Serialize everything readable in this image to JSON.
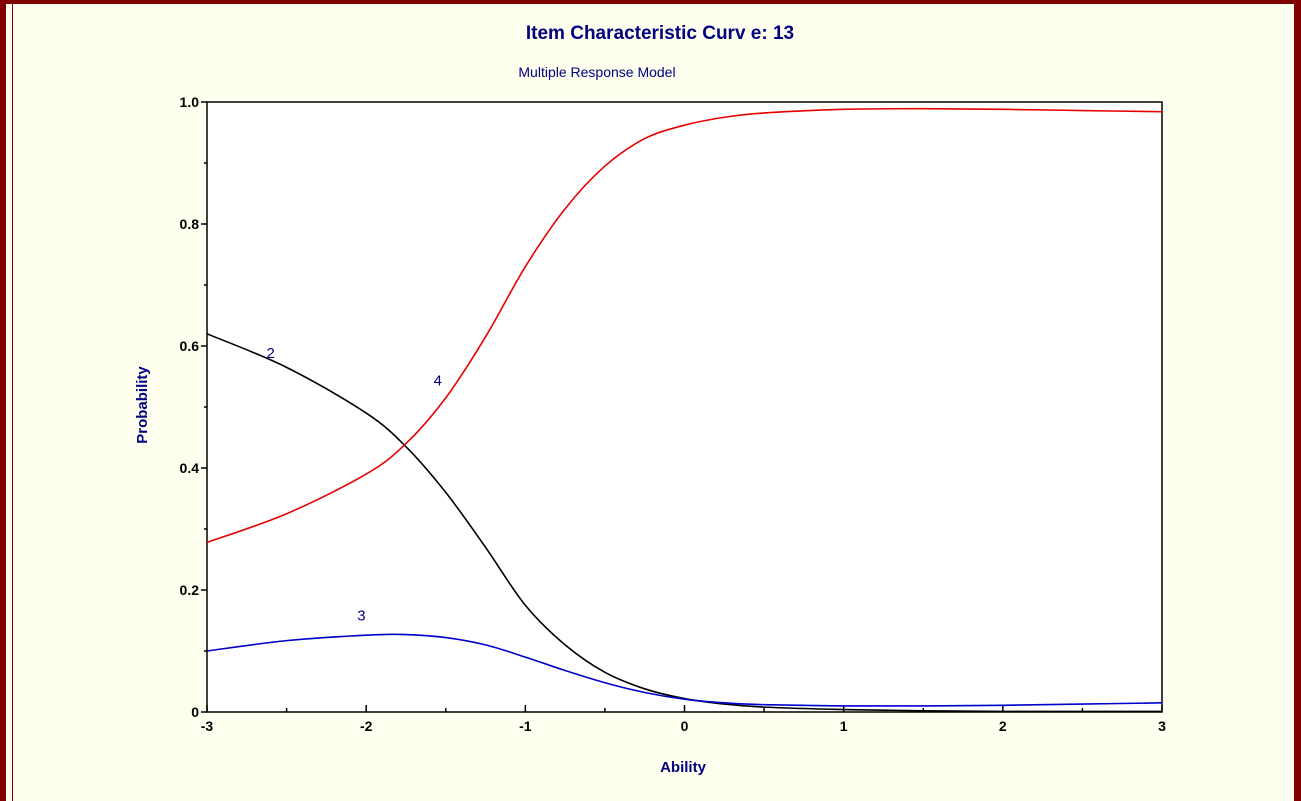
{
  "chart_data": {
    "type": "line",
    "title": "Item Characteristic Curv e: 13",
    "subtitle": "Multiple Response Model",
    "xlabel": "Ability",
    "ylabel": "Probability",
    "xlim": [
      -3,
      3
    ],
    "ylim": [
      0,
      1
    ],
    "x_ticks": [
      -3,
      -2,
      -1,
      0,
      1,
      2,
      3
    ],
    "x_tick_labels": [
      "-3",
      "-2",
      "-1",
      "0",
      "1",
      "2",
      "3"
    ],
    "y_ticks": [
      0,
      0.2,
      0.4,
      0.6,
      0.8,
      1.0
    ],
    "y_tick_labels": [
      "0",
      "0.2",
      "0.4",
      "0.6",
      "0.8",
      "1.0"
    ],
    "grid": false,
    "legend": "none",
    "series": [
      {
        "name": "2",
        "color": "#000000",
        "label_at": [
          -2.6,
          0.58
        ],
        "x": [
          -3,
          -2.5,
          -2,
          -1.75,
          -1.5,
          -1.25,
          -1,
          -0.75,
          -0.5,
          -0.25,
          0,
          0.25,
          0.5,
          1,
          1.5,
          2,
          2.5,
          3
        ],
        "y": [
          0.62,
          0.565,
          0.49,
          0.435,
          0.36,
          0.27,
          0.175,
          0.11,
          0.065,
          0.038,
          0.022,
          0.013,
          0.008,
          0.004,
          0.002,
          0.001,
          0.001,
          0.001
        ]
      },
      {
        "name": "3",
        "color": "#0000cc",
        "label_at": [
          -2.03,
          0.15
        ],
        "x": [
          -3,
          -2.5,
          -2,
          -1.75,
          -1.5,
          -1.25,
          -1,
          -0.75,
          -0.5,
          -0.25,
          0,
          0.25,
          0.5,
          1,
          1.5,
          2,
          2.5,
          3
        ],
        "y": [
          0.1,
          0.117,
          0.126,
          0.127,
          0.122,
          0.11,
          0.09,
          0.068,
          0.048,
          0.032,
          0.021,
          0.015,
          0.012,
          0.01,
          0.01,
          0.011,
          0.013,
          0.015
        ]
      },
      {
        "name": "4",
        "color": "#e60000",
        "label_at": [
          -1.55,
          0.535
        ],
        "x": [
          -3,
          -2.5,
          -2,
          -1.75,
          -1.5,
          -1.25,
          -1,
          -0.75,
          -0.5,
          -0.25,
          0,
          0.25,
          0.5,
          1,
          1.5,
          2,
          2.5,
          3
        ],
        "y": [
          0.278,
          0.325,
          0.39,
          0.44,
          0.515,
          0.615,
          0.73,
          0.825,
          0.895,
          0.94,
          0.962,
          0.975,
          0.982,
          0.988,
          0.989,
          0.988,
          0.986,
          0.984
        ]
      }
    ]
  }
}
